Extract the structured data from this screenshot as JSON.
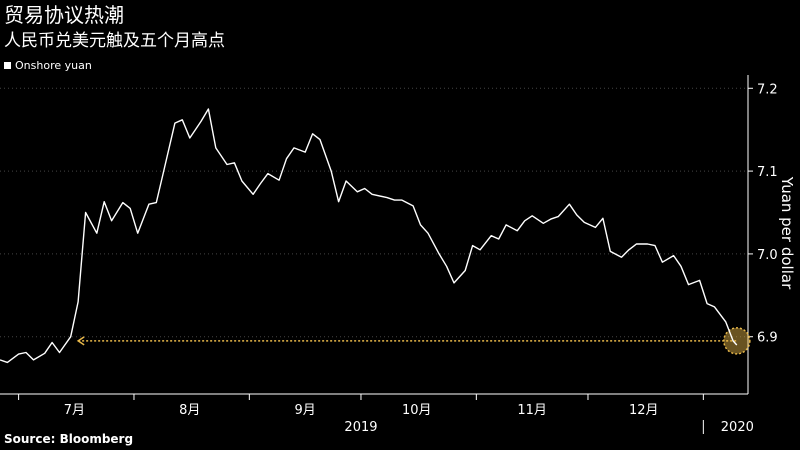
{
  "header": {
    "title": "贸易协议热潮",
    "subtitle": "人民币兑美元触及五个月高点"
  },
  "legend": {
    "label": "Onshore yuan"
  },
  "footer": {
    "source": "Source: Bloomberg"
  },
  "colors": {
    "background": "#000000",
    "line": "#ffffff",
    "grid": "#444444",
    "highlight": "#e8b84a"
  },
  "chart_data": {
    "type": "line",
    "title": "贸易协议热潮",
    "subtitle": "人民币兑美元触及五个月高点",
    "ylabel": "Yuan per dollar",
    "ylim": [
      6.85,
      7.2
    ],
    "yticks": [
      6.9,
      7.0,
      7.1,
      7.2
    ],
    "y_axis_position": "right",
    "grid": "horizontal dotted",
    "legend_position": "top-left",
    "x_tick_labels": [
      "7月",
      "8月",
      "9月",
      "10月",
      "11月",
      "12月",
      "2020"
    ],
    "x_group_labels": [
      "2019",
      "2020"
    ],
    "series": [
      {
        "name": "Onshore yuan",
        "x": [
          "2019-06-26",
          "2019-06-28",
          "2019-07-01",
          "2019-07-03",
          "2019-07-05",
          "2019-07-08",
          "2019-07-10",
          "2019-07-12",
          "2019-07-15",
          "2019-07-17",
          "2019-07-19",
          "2019-07-22",
          "2019-07-24",
          "2019-07-26",
          "2019-07-29",
          "2019-07-31",
          "2019-08-02",
          "2019-08-05",
          "2019-08-07",
          "2019-08-09",
          "2019-08-12",
          "2019-08-14",
          "2019-08-16",
          "2019-08-19",
          "2019-08-21",
          "2019-08-23",
          "2019-08-26",
          "2019-08-28",
          "2019-08-30",
          "2019-09-02",
          "2019-09-04",
          "2019-09-06",
          "2019-09-09",
          "2019-09-11",
          "2019-09-13",
          "2019-09-16",
          "2019-09-18",
          "2019-09-20",
          "2019-09-23",
          "2019-09-25",
          "2019-09-27",
          "2019-09-30",
          "2019-10-02",
          "2019-10-04",
          "2019-10-08",
          "2019-10-10",
          "2019-10-12",
          "2019-10-15",
          "2019-10-17",
          "2019-10-19",
          "2019-10-22",
          "2019-10-24",
          "2019-10-26",
          "2019-10-29",
          "2019-10-31",
          "2019-11-02",
          "2019-11-05",
          "2019-11-07",
          "2019-11-09",
          "2019-11-12",
          "2019-11-14",
          "2019-11-16",
          "2019-11-19",
          "2019-11-21",
          "2019-11-23",
          "2019-11-26",
          "2019-11-28",
          "2019-11-30",
          "2019-12-03",
          "2019-12-05",
          "2019-12-07",
          "2019-12-10",
          "2019-12-12",
          "2019-12-14",
          "2019-12-17",
          "2019-12-19",
          "2019-12-21",
          "2019-12-24",
          "2019-12-26",
          "2019-12-28",
          "2019-12-31",
          "2020-01-02",
          "2020-01-04",
          "2020-01-07",
          "2020-01-09",
          "2020-01-10"
        ],
        "y": [
          6.872,
          6.869,
          6.879,
          6.881,
          6.872,
          6.88,
          6.893,
          6.881,
          6.9,
          6.942,
          7.05,
          7.025,
          7.063,
          7.04,
          7.062,
          7.055,
          7.025,
          7.06,
          7.062,
          7.1,
          7.158,
          7.162,
          7.14,
          7.16,
          7.175,
          7.128,
          7.108,
          7.11,
          7.088,
          7.072,
          7.085,
          7.097,
          7.089,
          7.115,
          7.128,
          7.123,
          7.145,
          7.138,
          7.1,
          7.063,
          7.088,
          7.075,
          7.079,
          7.072,
          7.068,
          7.065,
          7.065,
          7.058,
          7.035,
          7.025,
          7.0,
          6.985,
          6.965,
          6.98,
          7.01,
          7.005,
          7.022,
          7.018,
          7.035,
          7.028,
          7.04,
          7.046,
          7.037,
          7.042,
          7.045,
          7.06,
          7.047,
          7.038,
          7.032,
          7.043,
          7.003,
          6.996,
          7.005,
          7.012,
          7.012,
          7.01,
          6.99,
          6.998,
          6.985,
          6.963,
          6.968,
          6.94,
          6.936,
          6.918,
          6.895,
          6.89
        ]
      }
    ],
    "annotations": [
      {
        "type": "arrow",
        "from_x": "2020-01-10",
        "to_x": "2019-07-17",
        "y": 6.895
      }
    ]
  }
}
